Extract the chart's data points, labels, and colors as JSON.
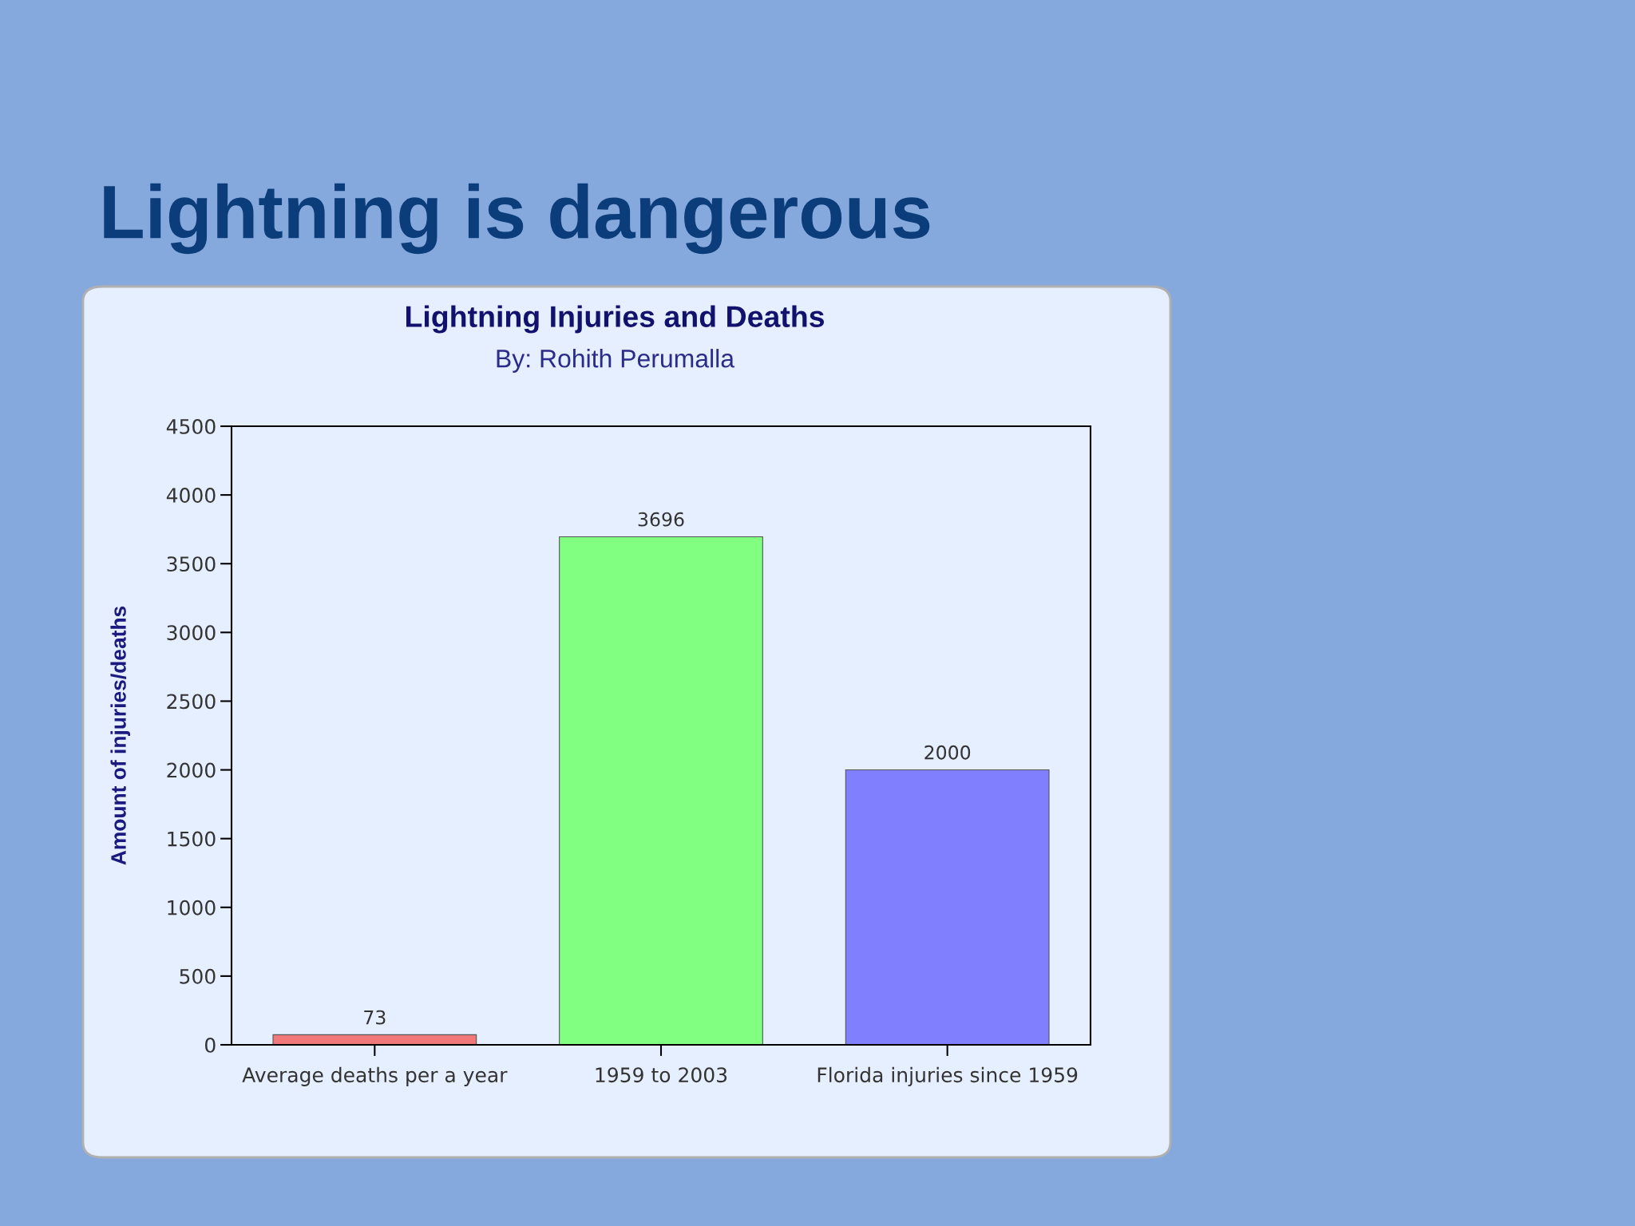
{
  "chart_data": {
    "type": "bar",
    "title": "Lightning Injuries and Deaths",
    "subtitle": "By: Rohith Perumalla",
    "ylabel": "Amount of injuries/deaths",
    "annotations": [
      "Lightning is dangerous"
    ],
    "categories": [
      "Average deaths per a year",
      "1959 to 2003",
      "Florida injuries since 1959"
    ],
    "values": [
      73,
      3696,
      2000
    ],
    "colors": [
      "#f07878",
      "#80ff80",
      "#8080ff"
    ],
    "ylim": [
      0,
      4500
    ],
    "yticks": [
      0,
      500,
      1000,
      1500,
      2000,
      2500,
      3000,
      3500,
      4000,
      4500
    ],
    "data_labels": true,
    "grid": false,
    "legend": false
  }
}
